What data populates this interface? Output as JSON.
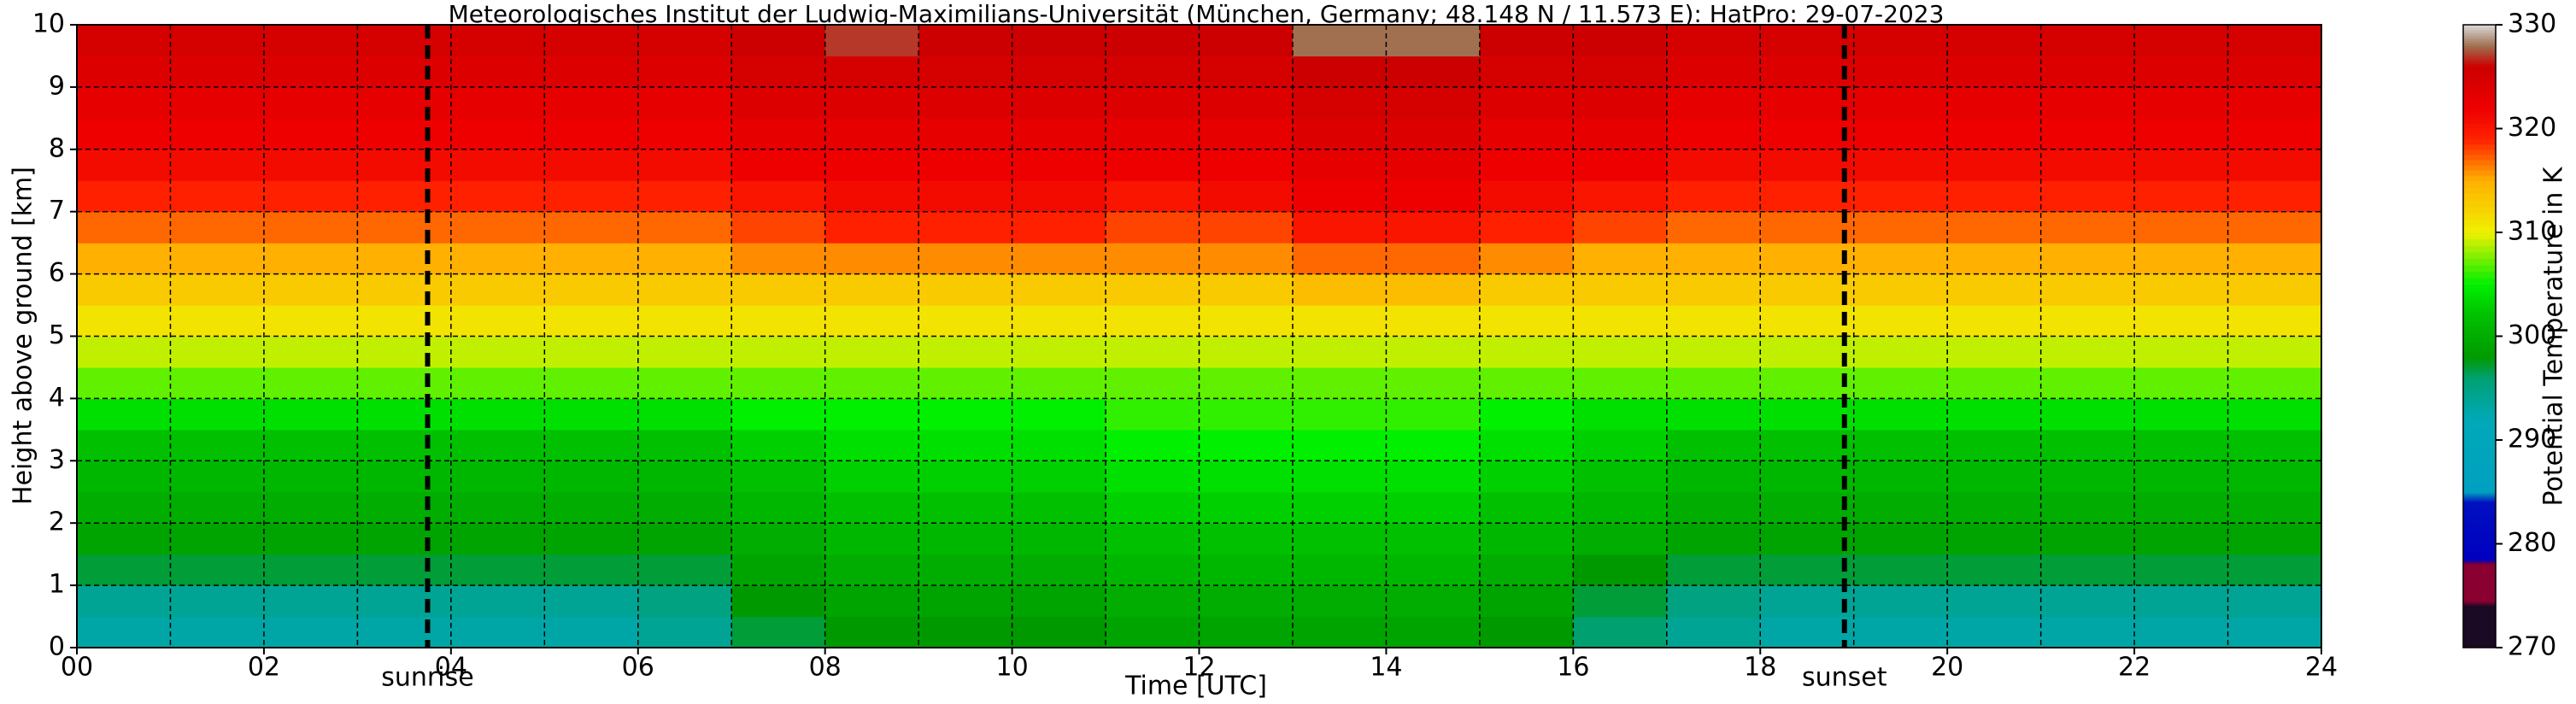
{
  "chart_data": {
    "type": "heatmap",
    "title": "Meteorologisches Institut der Ludwig-Maximilians-Universität (München, Germany; 48.148 N / 11.573 E):    HatPro: 29-07-2023",
    "xlabel": "Time [UTC]",
    "ylabel": "Height above ground [km]",
    "xlim": [
      0,
      24
    ],
    "ylim": [
      0,
      10
    ],
    "xticks": [
      {
        "value": 0,
        "label": "00"
      },
      {
        "value": 2,
        "label": "02"
      },
      {
        "value": 4,
        "label": "04"
      },
      {
        "value": 6,
        "label": "06"
      },
      {
        "value": 8,
        "label": "08"
      },
      {
        "value": 10,
        "label": "10"
      },
      {
        "value": 12,
        "label": "12"
      },
      {
        "value": 14,
        "label": "14"
      },
      {
        "value": 16,
        "label": "16"
      },
      {
        "value": 18,
        "label": "18"
      },
      {
        "value": 20,
        "label": "20"
      },
      {
        "value": 22,
        "label": "22"
      },
      {
        "value": 24,
        "label": "24"
      }
    ],
    "x_minor_ticks": [
      1,
      3,
      5,
      7,
      9,
      11,
      13,
      15,
      17,
      19,
      21,
      23
    ],
    "yticks": [
      0,
      1,
      2,
      3,
      4,
      5,
      6,
      7,
      8,
      9,
      10
    ],
    "grid": true,
    "x_edges": [
      0,
      1,
      2,
      3,
      4,
      5,
      6,
      7,
      8,
      9,
      10,
      11,
      12,
      13,
      14,
      15,
      16,
      17,
      18,
      19,
      20,
      21,
      22,
      23,
      24
    ],
    "y_edges": [
      0,
      0.5,
      1,
      1.5,
      2,
      2.5,
      3,
      3.5,
      4,
      4.5,
      5,
      5.5,
      6,
      6.5,
      7,
      7.5,
      8,
      8.5,
      9,
      9.5,
      10
    ],
    "z": [
      [
        293,
        293,
        293,
        293,
        293,
        293,
        294,
        297,
        298,
        298,
        298,
        299,
        299,
        299,
        299,
        298,
        296,
        294,
        293,
        293,
        293,
        293,
        293,
        293
      ],
      [
        294,
        294,
        294,
        294,
        294,
        294,
        295,
        298,
        299,
        299,
        299,
        300,
        300,
        300,
        300,
        299,
        297,
        295,
        294,
        294,
        294,
        294,
        294,
        294
      ],
      [
        297,
        297,
        297,
        297,
        297,
        297,
        297,
        299,
        300,
        300,
        300,
        301,
        301,
        301,
        301,
        300,
        298,
        297,
        297,
        297,
        297,
        297,
        297,
        297
      ],
      [
        299,
        299,
        299,
        299,
        299,
        299,
        299,
        300,
        301,
        301,
        301,
        302,
        302,
        302,
        302,
        301,
        300,
        299,
        299,
        299,
        299,
        299,
        299,
        299
      ],
      [
        300,
        300,
        300,
        300,
        300,
        300,
        300,
        301,
        302,
        302,
        302,
        303,
        303,
        303,
        303,
        302,
        301,
        300,
        300,
        300,
        300,
        300,
        300,
        300
      ],
      [
        301,
        301,
        301,
        301,
        301,
        301,
        301,
        302,
        303,
        303,
        303,
        304,
        304,
        304,
        304,
        303,
        302,
        301,
        301,
        301,
        301,
        301,
        301,
        301
      ],
      [
        302,
        302,
        302,
        302,
        302,
        302,
        302,
        303,
        304,
        304,
        304,
        305,
        305,
        305,
        305,
        304,
        303,
        302,
        302,
        302,
        302,
        302,
        302,
        302
      ],
      [
        304,
        304,
        304,
        304,
        304,
        304,
        304,
        305,
        305,
        305,
        305,
        306,
        306,
        306,
        306,
        305,
        304,
        304,
        304,
        304,
        304,
        304,
        304,
        304
      ],
      [
        307,
        307,
        307,
        307,
        307,
        307,
        307,
        307,
        307,
        307,
        307,
        307,
        307,
        307,
        307,
        307,
        307,
        307,
        307,
        307,
        307,
        307,
        307,
        307
      ],
      [
        309,
        309,
        309,
        309,
        309,
        309,
        309,
        309,
        309,
        309,
        309,
        309,
        309,
        309,
        309,
        309,
        309,
        309,
        309,
        309,
        309,
        309,
        309,
        309
      ],
      [
        311,
        311,
        311,
        311,
        311,
        311,
        311,
        311,
        311,
        311,
        311,
        311,
        311,
        311,
        311,
        311,
        311,
        311,
        311,
        311,
        311,
        311,
        311,
        311
      ],
      [
        313,
        313,
        313,
        313,
        313,
        313,
        313,
        313,
        313,
        313,
        313,
        313,
        313,
        314,
        314,
        313,
        313,
        313,
        313,
        313,
        313,
        313,
        313,
        313
      ],
      [
        315,
        315,
        315,
        315,
        315,
        315,
        315,
        316,
        316,
        316,
        316,
        316,
        316,
        317,
        317,
        316,
        315,
        315,
        315,
        315,
        315,
        315,
        315,
        315
      ],
      [
        317,
        317,
        317,
        317,
        317,
        317,
        317,
        318,
        319,
        319,
        319,
        318,
        318,
        320,
        320,
        319,
        318,
        317,
        317,
        317,
        317,
        317,
        317,
        317
      ],
      [
        319,
        319,
        319,
        319,
        319,
        319,
        319,
        320,
        321,
        321,
        321,
        320,
        321,
        322,
        322,
        321,
        320,
        319,
        319,
        319,
        319,
        319,
        319,
        319
      ],
      [
        321,
        321,
        321,
        321,
        321,
        321,
        321,
        322,
        322,
        322,
        322,
        322,
        322,
        323,
        323,
        322,
        322,
        321,
        321,
        321,
        321,
        321,
        321,
        321
      ],
      [
        322,
        322,
        322,
        322,
        322,
        322,
        322,
        323,
        323,
        323,
        323,
        323,
        323,
        324,
        324,
        323,
        323,
        322,
        322,
        322,
        322,
        322,
        322,
        322
      ],
      [
        323,
        323,
        323,
        323,
        323,
        323,
        323,
        324,
        324,
        324,
        324,
        324,
        324,
        325,
        325,
        324,
        324,
        323,
        323,
        323,
        323,
        323,
        323,
        323
      ],
      [
        324,
        324,
        324,
        324,
        324,
        324,
        324,
        325,
        325,
        325,
        325,
        325,
        325,
        326,
        326,
        325,
        325,
        324,
        324,
        324,
        324,
        324,
        324,
        324
      ],
      [
        325,
        325,
        325,
        325,
        325,
        325,
        325,
        326,
        327,
        326,
        326,
        326,
        326,
        328,
        328,
        326,
        326,
        325,
        325,
        325,
        325,
        325,
        325,
        325
      ]
    ],
    "annotations": [
      {
        "x": 3.75,
        "label": "sunrise"
      },
      {
        "x": 18.9,
        "label": "sunset"
      }
    ],
    "colorbar": {
      "label": "Potential Temperature in K",
      "lim": [
        270,
        330
      ],
      "ticks": [
        270,
        280,
        290,
        300,
        310,
        320,
        330
      ]
    },
    "colormap": [
      {
        "value": 270,
        "color": "#1a0a24"
      },
      {
        "value": 274,
        "color": "#1a0a24"
      },
      {
        "value": 274.5,
        "color": "#8a0030"
      },
      {
        "value": 278,
        "color": "#8a0030"
      },
      {
        "value": 278.5,
        "color": "#0000c0"
      },
      {
        "value": 284,
        "color": "#0010c0"
      },
      {
        "value": 285,
        "color": "#00a0c0"
      },
      {
        "value": 292,
        "color": "#00a8b8"
      },
      {
        "value": 296,
        "color": "#00a070"
      },
      {
        "value": 298,
        "color": "#009a00"
      },
      {
        "value": 302,
        "color": "#00c000"
      },
      {
        "value": 305,
        "color": "#00f000"
      },
      {
        "value": 310,
        "color": "#f0f000"
      },
      {
        "value": 315,
        "color": "#ffb000"
      },
      {
        "value": 319,
        "color": "#ff2000"
      },
      {
        "value": 322,
        "color": "#ee0000"
      },
      {
        "value": 326,
        "color": "#cc0000"
      },
      {
        "value": 328,
        "color": "#a07050"
      },
      {
        "value": 330,
        "color": "#d8d8d8"
      }
    ]
  }
}
